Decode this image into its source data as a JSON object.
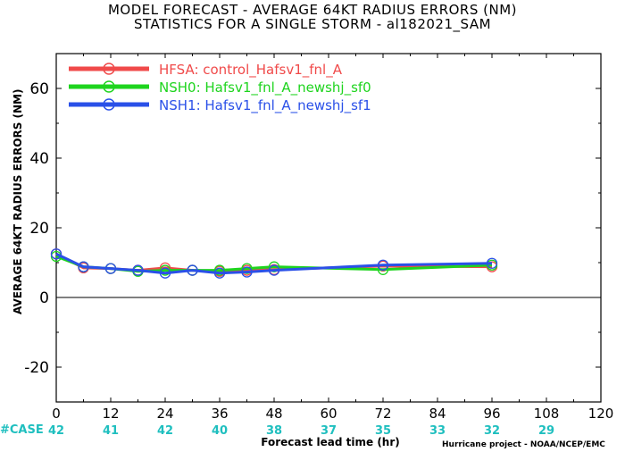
{
  "title_line1": "MODEL FORECAST - AVERAGE 64KT RADIUS ERRORS (NM)",
  "title_line2": "STATISTICS FOR A SINGLE STORM - al182021_SAM",
  "credit": "Hurricane project - NOAA/NCEP/EMC",
  "case_label": "#CASE",
  "colors": {
    "case": "#1fbfbf",
    "zero_line": "#000000"
  },
  "chart_data": {
    "type": "line",
    "xlabel": "Forecast lead time (hr)",
    "ylabel": "AVERAGE 64KT RADIUS ERRORS (NM)",
    "xlim": [
      0,
      120
    ],
    "ylim": [
      -30,
      70
    ],
    "xticks": [
      0,
      12,
      24,
      36,
      48,
      60,
      72,
      84,
      96,
      108,
      120
    ],
    "yticks": [
      -20,
      0,
      20,
      40,
      60
    ],
    "grid": false,
    "legend_position": "top-left",
    "cases": [
      {
        "x": 0,
        "n": "42"
      },
      {
        "x": 12,
        "n": "41"
      },
      {
        "x": 24,
        "n": "42"
      },
      {
        "x": 36,
        "n": "40"
      },
      {
        "x": 48,
        "n": "38"
      },
      {
        "x": 60,
        "n": "37"
      },
      {
        "x": 72,
        "n": "35"
      },
      {
        "x": 84,
        "n": "33"
      },
      {
        "x": 96,
        "n": "32"
      },
      {
        "x": 108,
        "n": "29"
      }
    ],
    "series": [
      {
        "name": "HFSA: control_Hafsv1_fnl_A",
        "color": "#f04a4a",
        "x": [
          0,
          6,
          12,
          18,
          24,
          30,
          36,
          42,
          48,
          72,
          96
        ],
        "y": [
          12.5,
          8.5,
          8.3,
          7.8,
          8.5,
          7.8,
          7.5,
          7.8,
          8.0,
          9.0,
          8.8
        ]
      },
      {
        "name": "NSH0: Hafsv1_fnl_A_newshj_sf0",
        "color": "#1ed41e",
        "x": [
          0,
          6,
          12,
          18,
          24,
          30,
          36,
          42,
          48,
          72,
          96
        ],
        "y": [
          11.8,
          8.8,
          8.3,
          7.5,
          7.8,
          7.8,
          7.8,
          8.3,
          8.8,
          8.0,
          9.3
        ]
      },
      {
        "name": "NSH1: Hafsv1_fnl_A_newshj_sf1",
        "color": "#2a50e8",
        "x": [
          0,
          6,
          12,
          18,
          24,
          30,
          36,
          42,
          48,
          72,
          96
        ],
        "y": [
          12.5,
          8.8,
          8.3,
          7.8,
          7.0,
          7.8,
          7.0,
          7.3,
          7.8,
          9.3,
          9.8
        ]
      }
    ]
  }
}
